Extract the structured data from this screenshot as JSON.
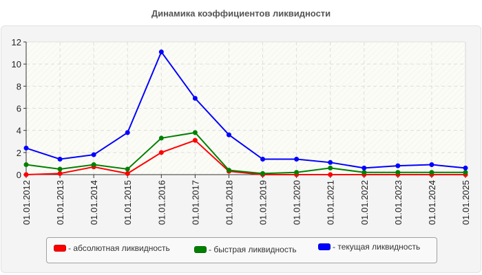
{
  "chart_data": {
    "type": "line",
    "title": "Динамика коэффициентов ликвидности",
    "xlabel": "",
    "ylabel": "",
    "ylim": [
      0,
      12
    ],
    "yticks": [
      0,
      2,
      4,
      6,
      8,
      10,
      12
    ],
    "grid": true,
    "legend_position": "bottom",
    "categories": [
      "01.01.2012",
      "01.01.2013",
      "01.01.2014",
      "01.01.2015",
      "01.01.2016",
      "01.01.2017",
      "01.01.2018",
      "01.01.2019",
      "01.01.2020",
      "01.01.2021",
      "01.01.2022",
      "01.01.2023",
      "01.01.2024",
      "01.01.2025"
    ],
    "series": [
      {
        "name": "абсолютная ликвидность",
        "color": "#ff0000",
        "values": [
          0.0,
          0.1,
          0.7,
          0.1,
          2.0,
          3.1,
          0.3,
          0.0,
          0.0,
          0.0,
          0.0,
          0.0,
          0.0,
          0.0
        ]
      },
      {
        "name": "быстрая ликвидность",
        "color": "#008000",
        "values": [
          0.9,
          0.5,
          0.9,
          0.5,
          3.3,
          3.8,
          0.4,
          0.1,
          0.2,
          0.6,
          0.2,
          0.2,
          0.2,
          0.2
        ]
      },
      {
        "name": "текущая ликвидность",
        "color": "#0000ff",
        "values": [
          2.4,
          1.4,
          1.8,
          3.8,
          11.1,
          6.9,
          3.6,
          1.4,
          1.4,
          1.1,
          0.6,
          0.8,
          0.9,
          0.6
        ]
      }
    ]
  },
  "legend": {
    "items": [
      {
        "label": "- абсолютная ликвидность",
        "color": "#ff0000"
      },
      {
        "label": "- быстрая ликвидность",
        "color": "#008000"
      },
      {
        "label": "- текущая ликвидность",
        "color": "#0000ff"
      }
    ]
  }
}
